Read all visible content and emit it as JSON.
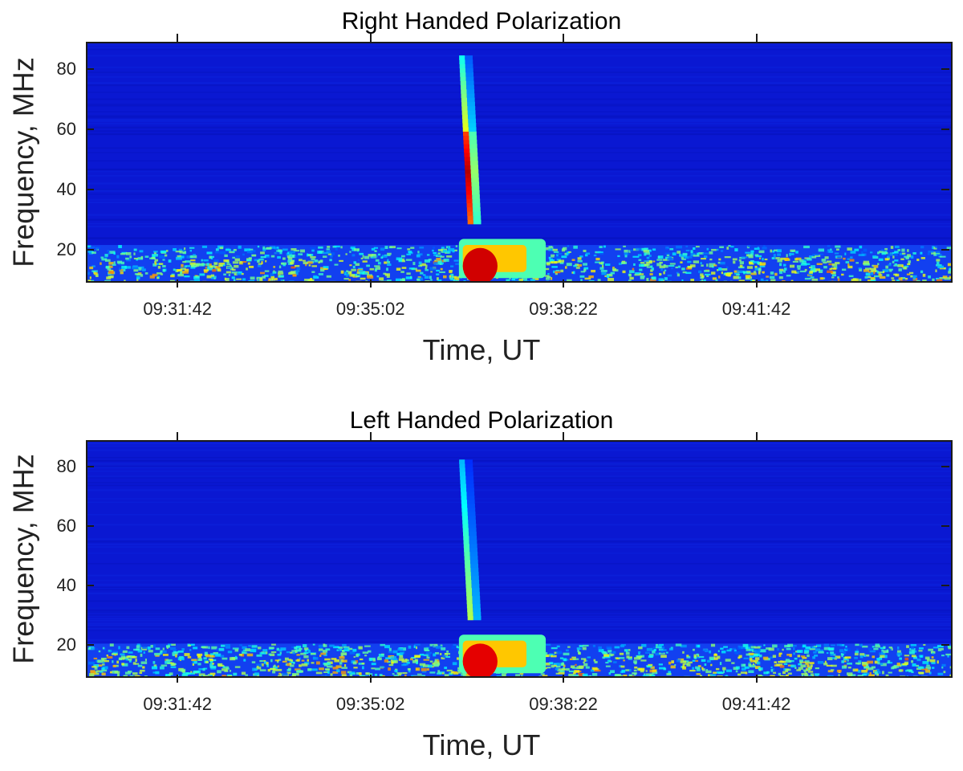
{
  "chart_data": [
    {
      "type": "heatmap",
      "title": "Right Handed Polarization",
      "xlabel": "Time, UT",
      "ylabel": "Frequency, MHz",
      "xticks": [
        "09:31:42",
        "09:35:02",
        "09:38:22",
        "09:41:42"
      ],
      "xtick_seconds": [
        0,
        200,
        400,
        600
      ],
      "xlim_seconds": [
        -95,
        800
      ],
      "yticks": [
        "20",
        "40",
        "60",
        "80"
      ],
      "ytick_values": [
        20,
        40,
        60,
        80
      ],
      "ylim": [
        10,
        89
      ],
      "colormap": "jet",
      "burst": {
        "start_seconds": 290,
        "top_freq_mhz": 85,
        "band_low_mhz": 29,
        "lf_blob_end_seconds": 380
      },
      "noise_band_mhz": [
        10,
        22
      ]
    },
    {
      "type": "heatmap",
      "title": "Left Handed Polarization",
      "xlabel": "Time, UT",
      "ylabel": "Frequency, MHz",
      "xticks": [
        "09:31:42",
        "09:35:02",
        "09:38:22",
        "09:41:42"
      ],
      "xtick_seconds": [
        0,
        200,
        400,
        600
      ],
      "xlim_seconds": [
        -95,
        800
      ],
      "yticks": [
        "20",
        "40",
        "60",
        "80"
      ],
      "ytick_values": [
        20,
        40,
        60,
        80
      ],
      "ylim": [
        10,
        89
      ],
      "colormap": "jet",
      "burst": {
        "start_seconds": 290,
        "top_freq_mhz": 83,
        "band_low_mhz": 29,
        "lf_blob_end_seconds": 380
      },
      "noise_band_mhz": [
        10,
        21
      ]
    }
  ]
}
